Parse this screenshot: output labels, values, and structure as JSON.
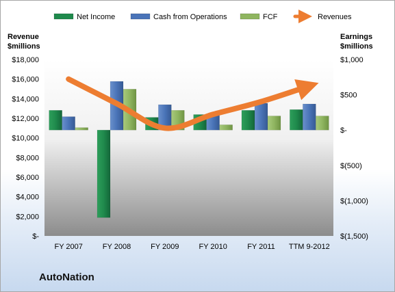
{
  "company": "AutoNation",
  "colors": {
    "net_income": "#1f8a4c",
    "cash_from_operations": "#4a74b8",
    "fcf": "#8fb560",
    "revenues": "#ed7d31"
  },
  "chart_data": {
    "type": "bar",
    "categories": [
      "FY 2007",
      "FY 2008",
      "FY 2009",
      "FY 2010",
      "FY 2011",
      "TTM 9-2012"
    ],
    "series": [
      {
        "name": "Net Income",
        "axis": "right",
        "values": [
          280,
          -1240,
          180,
          220,
          280,
          290
        ]
      },
      {
        "name": "Cash from Operations",
        "axis": "right",
        "values": [
          190,
          690,
          360,
          230,
          380,
          370
        ]
      },
      {
        "name": "FCF",
        "axis": "right",
        "values": [
          35,
          580,
          280,
          75,
          200,
          200
        ]
      },
      {
        "name": "Revenues",
        "axis": "left",
        "type": "line",
        "values": [
          16000,
          13500,
          11000,
          12400,
          13700,
          15300
        ]
      }
    ],
    "legend": [
      "Net Income",
      "Cash from Operations",
      "FCF",
      "Revenues"
    ],
    "legend_position": "top",
    "ylabel_left": [
      "Revenue",
      "$millions"
    ],
    "ylabel_right": [
      "Earnings",
      "$millions"
    ],
    "ylim_left": [
      0,
      18000
    ],
    "ylim_right": [
      -1500,
      1000
    ],
    "left_ticks": [
      "$-",
      "$2,000",
      "$4,000",
      "$6,000",
      "$8,000",
      "$10,000",
      "$12,000",
      "$14,000",
      "$16,000",
      "$18,000"
    ],
    "right_ticks": [
      "$(1,500)",
      "$(1,000)",
      "$(500)",
      "$-",
      "$500",
      "$1,000"
    ],
    "right_tick_values": [
      -1500,
      -1000,
      -500,
      0,
      500,
      1000
    ],
    "grid": false
  }
}
